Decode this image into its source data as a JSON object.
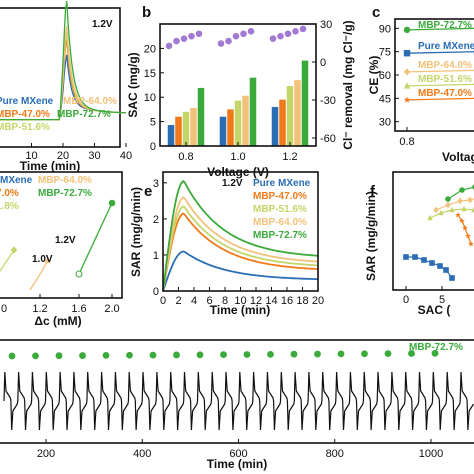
{
  "colors": {
    "pure": "#2a6db5",
    "mbp47": "#f07a1a",
    "mbp51": "#c4d66a",
    "mbp64": "#f3c27a",
    "mbp72": "#3aaa3a",
    "purple": "#a27ad4",
    "black": "#111111"
  },
  "chart_data": [
    {
      "id": "a",
      "type": "line",
      "panel_label": "",
      "xlabel": "Time (min)",
      "xticks": [
        "10",
        "20",
        "30",
        "40"
      ],
      "annotation": "1.2V",
      "legend": [
        "Pure MXene",
        "MBP-47.0%",
        "MBP-51.6%",
        "MBP-64.0%",
        "MBP-72.7%"
      ],
      "peak_time": 21
    },
    {
      "id": "b",
      "type": "bar",
      "panel_label": "b",
      "xlabel": "Voltage (V)",
      "ylabel": "SAC (mg/g)",
      "ylabel_right": "Cl⁻ removal (mg Cl⁻/g)",
      "categories": [
        "0.8",
        "1.0",
        "1.2"
      ],
      "ylim": [
        0,
        25
      ],
      "yticks": [
        "0",
        "5",
        "10",
        "15",
        "20"
      ],
      "yticks_right": [
        "-60",
        "-30",
        "0",
        "30"
      ],
      "series": [
        {
          "name": "Pure MXene",
          "values": [
            4.3,
            6.0,
            8.0
          ]
        },
        {
          "name": "MBP-47.0%",
          "values": [
            6.0,
            7.5,
            9.5
          ]
        },
        {
          "name": "MBP-51.6%",
          "values": [
            7.0,
            9.3,
            12.3
          ]
        },
        {
          "name": "MBP-64.0%",
          "values": [
            7.8,
            10.3,
            13.5
          ]
        },
        {
          "name": "MBP-72.7%",
          "values": [
            11.9,
            14.0,
            17.5
          ]
        }
      ],
      "cl_removal_points": [
        [
          20.5,
          21.5,
          22,
          22.5,
          23
        ],
        [
          21,
          21.5,
          22.5,
          23,
          23.5
        ],
        [
          22,
          22.5,
          23,
          23.5,
          24
        ]
      ]
    },
    {
      "id": "c",
      "type": "scatter",
      "panel_label": "c",
      "xlabel": "Voltag",
      "ylabel": "CE (%)",
      "xticks": [
        "0.8"
      ],
      "yticks": [
        "30",
        "45",
        "60",
        "75",
        "90"
      ],
      "series": [
        {
          "name": "MBP-72.7%",
          "values": [
            89,
            90
          ]
        },
        {
          "name": "Pure MXene",
          "values": [
            74,
            75
          ]
        },
        {
          "name": "MBP-64.0%",
          "values": [
            62,
            63
          ]
        },
        {
          "name": "MBP-51.6%",
          "values": [
            53,
            54
          ]
        },
        {
          "name": "MBP-47.0%",
          "values": [
            44,
            45
          ]
        }
      ]
    },
    {
      "id": "d",
      "type": "line",
      "panel_label": "",
      "xlabel": "Δc (mM)",
      "xticks": [
        "1.2",
        "1.6",
        "2.0"
      ],
      "xtick_partial": "0",
      "legend_partial": [
        "MXene",
        "7.0%",
        "MBP-64.0%",
        "MBP-72.7%",
        "1.8%"
      ],
      "annotations": [
        "1.2V",
        "1.0V"
      ]
    },
    {
      "id": "e",
      "type": "line",
      "panel_label": "e",
      "xlabel": "Time (min)",
      "ylabel": "SAR (mg/g/min)",
      "xlim": [
        0,
        20
      ],
      "ylim": [
        0,
        3.3
      ],
      "xticks": [
        "0",
        "2",
        "4",
        "6",
        "8",
        "10",
        "12",
        "14",
        "16",
        "18",
        "20"
      ],
      "yticks": [
        "0",
        "1",
        "2",
        "3"
      ],
      "annotation": "1.2V",
      "series": [
        {
          "name": "Pure MXene",
          "peak": 1.1,
          "end": 0.3
        },
        {
          "name": "MBP-47.0%",
          "peak": 2.15,
          "end": 0.55
        },
        {
          "name": "MBP-51.6%",
          "peak": 2.35,
          "end": 0.65
        },
        {
          "name": "MBP-64.0%",
          "peak": 2.6,
          "end": 0.75
        },
        {
          "name": "MBP-72.7%",
          "peak": 3.05,
          "end": 0.9
        }
      ]
    },
    {
      "id": "f",
      "type": "scatter",
      "panel_label": "f",
      "xlabel": "SAC (",
      "ylabel": "SAR (mg/g/min)",
      "xticks": [
        "0",
        "5",
        "1"
      ]
    },
    {
      "id": "g",
      "type": "line",
      "panel_label": "",
      "xlabel": "Time (min)",
      "xlim": [
        0,
        1250
      ],
      "xticks": [
        "200",
        "400",
        "600",
        "800",
        "1000"
      ],
      "legend": [
        "MBP-72.7%"
      ],
      "cycles": 34,
      "retention_points": 19
    }
  ]
}
